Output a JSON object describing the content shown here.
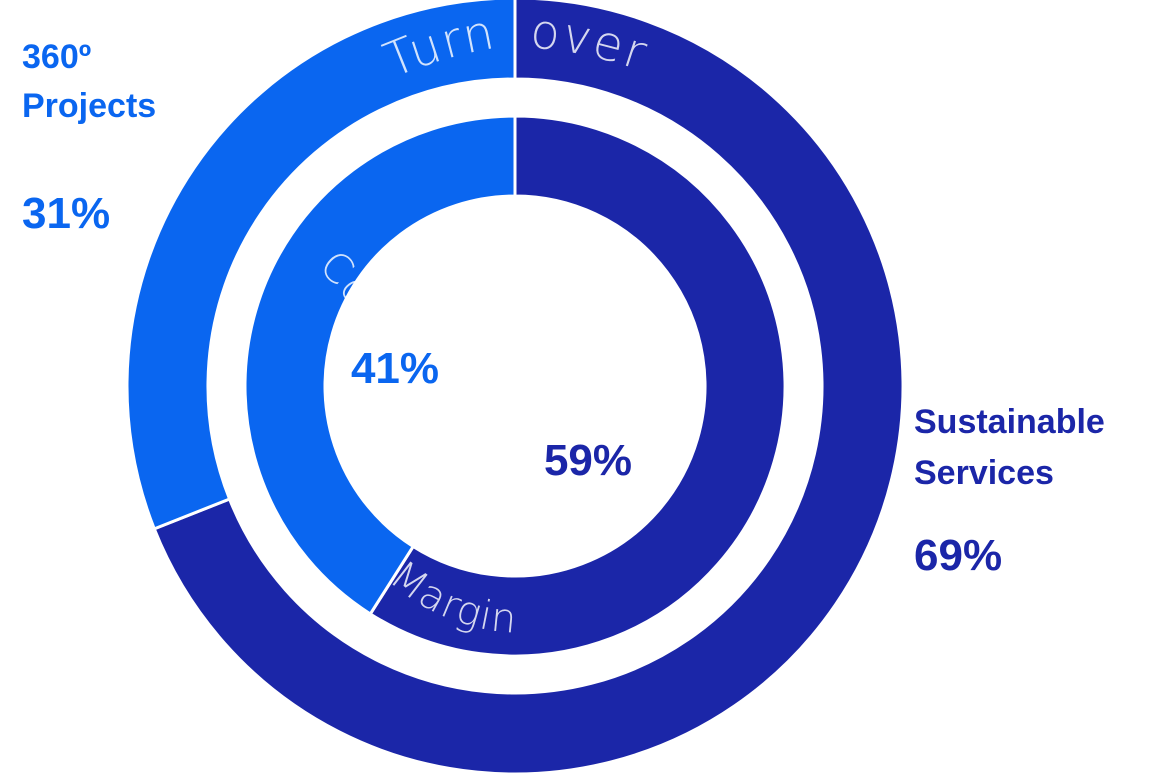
{
  "chart_data": {
    "type": "donut",
    "rings": [
      {
        "name": "Turnover",
        "label_parts": [
          "Turn",
          "over"
        ],
        "slices": [
          {
            "category": "Sustainable Services",
            "value": 69,
            "label": "69%"
          },
          {
            "category": "360º Projects",
            "value": 31,
            "label": "31%"
          }
        ]
      },
      {
        "name": "Contribution Margin",
        "label_parts": [
          "Contribution",
          "Margin"
        ],
        "slices": [
          {
            "category": "Sustainable Services",
            "value": 59,
            "label": "59%"
          },
          {
            "category": "360º Projects",
            "value": 41,
            "label": "41%"
          }
        ]
      }
    ],
    "categories": [
      {
        "name": "Sustainable Services",
        "lines": [
          "Sustainable",
          "Services"
        ],
        "color": "#1b26a8"
      },
      {
        "name": "360º Projects",
        "lines": [
          "360º",
          "Projects"
        ],
        "color": "#0a66f0"
      }
    ]
  }
}
